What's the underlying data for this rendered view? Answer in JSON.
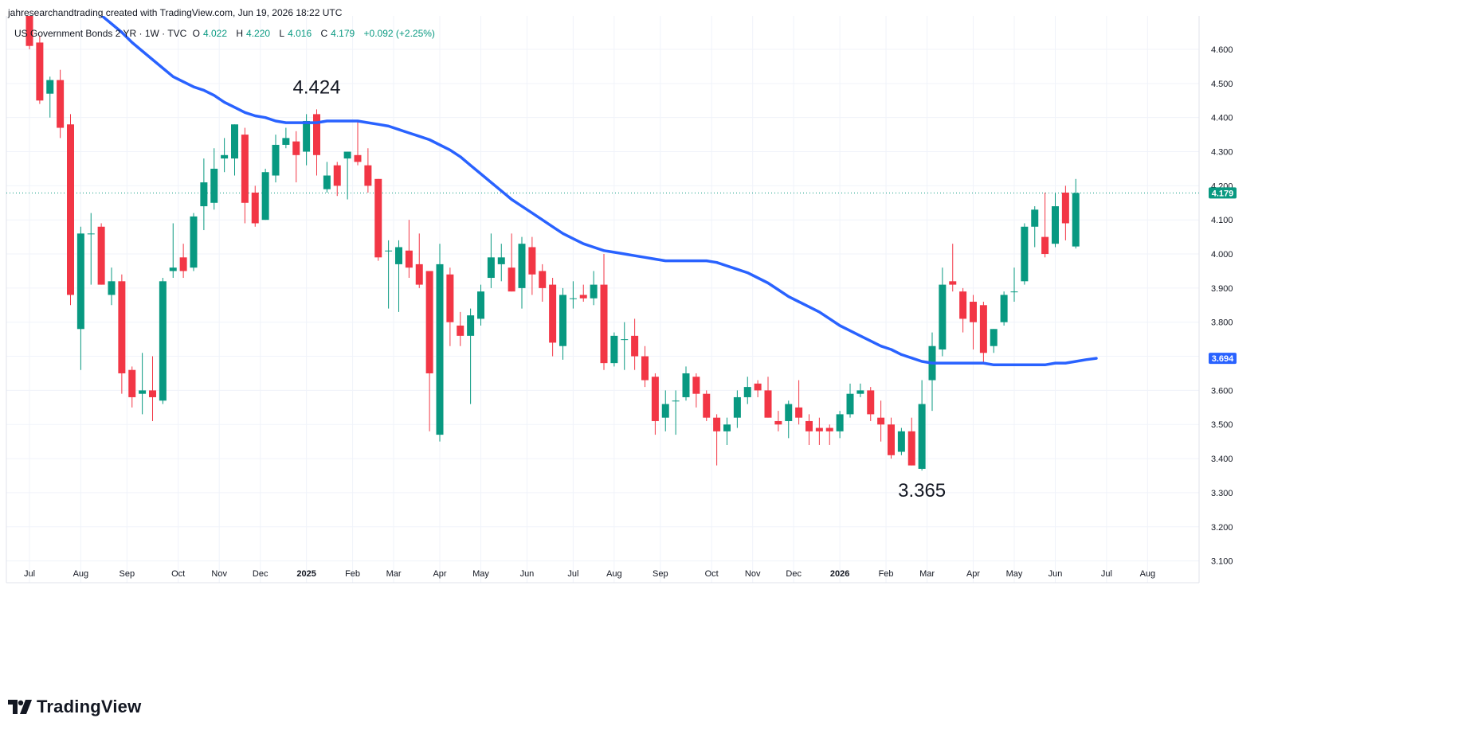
{
  "header": {
    "credit": "jahresearchandtrading created with TradingView.com, Jun 19, 2026 18:22 UTC",
    "symbol": "US Government Bonds 2 YR · 1W · TVC",
    "o_label": "O",
    "o_value": "4.022",
    "h_label": "H",
    "h_value": "4.220",
    "l_label": "L",
    "l_value": "4.016",
    "c_label": "C",
    "c_value": "4.179",
    "change": "+0.092 (+2.25%)"
  },
  "brand": {
    "name": "TradingView"
  },
  "colors": {
    "up": "#089981",
    "down": "#f23645",
    "ma": "#2962ff",
    "grid": "#f0f3fa"
  },
  "chart_data": {
    "type": "candlestick",
    "title": "US Government Bonds 2 YR · 1W · TVC",
    "ylim": [
      3.05,
      4.69
    ],
    "y_ticks": [
      "3.100",
      "3.200",
      "3.300",
      "3.400",
      "3.500",
      "3.600",
      "3.700",
      "3.800",
      "3.900",
      "4.000",
      "4.100",
      "4.200",
      "4.300",
      "4.400",
      "4.500",
      "4.600"
    ],
    "x_ticks": [
      {
        "label": "Jul",
        "i": 0
      },
      {
        "label": "Aug",
        "i": 5
      },
      {
        "label": "Sep",
        "i": 9.5
      },
      {
        "label": "Oct",
        "i": 14.5
      },
      {
        "label": "Nov",
        "i": 18.5
      },
      {
        "label": "Dec",
        "i": 22.5
      },
      {
        "label": "2025",
        "i": 27,
        "bold": true
      },
      {
        "label": "Feb",
        "i": 31.5
      },
      {
        "label": "Mar",
        "i": 35.5
      },
      {
        "label": "Apr",
        "i": 40
      },
      {
        "label": "May",
        "i": 44
      },
      {
        "label": "Jun",
        "i": 48.5
      },
      {
        "label": "Jul",
        "i": 53
      },
      {
        "label": "Aug",
        "i": 57
      },
      {
        "label": "Sep",
        "i": 61.5
      },
      {
        "label": "Oct",
        "i": 66.5
      },
      {
        "label": "Nov",
        "i": 70.5
      },
      {
        "label": "Dec",
        "i": 74.5
      },
      {
        "label": "2026",
        "i": 79,
        "bold": true
      },
      {
        "label": "Feb",
        "i": 83.5
      },
      {
        "label": "Mar",
        "i": 87.5
      },
      {
        "label": "Apr",
        "i": 92
      },
      {
        "label": "May",
        "i": 96
      },
      {
        "label": "Jun",
        "i": 100
      },
      {
        "label": "Jul",
        "i": 105
      },
      {
        "label": "Aug",
        "i": 109
      }
    ],
    "candles": [
      {
        "o": 4.72,
        "h": 4.75,
        "l": 4.6,
        "c": 4.61
      },
      {
        "o": 4.62,
        "h": 4.64,
        "l": 4.44,
        "c": 4.45
      },
      {
        "o": 4.47,
        "h": 4.52,
        "l": 4.4,
        "c": 4.51
      },
      {
        "o": 4.51,
        "h": 4.54,
        "l": 4.34,
        "c": 4.37
      },
      {
        "o": 4.38,
        "h": 4.41,
        "l": 3.85,
        "c": 3.88
      },
      {
        "o": 3.78,
        "h": 4.08,
        "l": 3.66,
        "c": 4.06
      },
      {
        "o": 4.06,
        "h": 4.12,
        "l": 3.91,
        "c": 4.06
      },
      {
        "o": 4.08,
        "h": 4.09,
        "l": 3.91,
        "c": 3.91
      },
      {
        "o": 3.88,
        "h": 3.96,
        "l": 3.85,
        "c": 3.92
      },
      {
        "o": 3.92,
        "h": 3.94,
        "l": 3.59,
        "c": 3.65
      },
      {
        "o": 3.66,
        "h": 3.67,
        "l": 3.55,
        "c": 3.58
      },
      {
        "o": 3.59,
        "h": 3.71,
        "l": 3.53,
        "c": 3.6
      },
      {
        "o": 3.6,
        "h": 3.7,
        "l": 3.51,
        "c": 3.58
      },
      {
        "o": 3.57,
        "h": 3.93,
        "l": 3.56,
        "c": 3.92
      },
      {
        "o": 3.95,
        "h": 4.09,
        "l": 3.93,
        "c": 3.96
      },
      {
        "o": 3.99,
        "h": 4.03,
        "l": 3.93,
        "c": 3.95
      },
      {
        "o": 3.96,
        "h": 4.12,
        "l": 3.95,
        "c": 4.11
      },
      {
        "o": 4.14,
        "h": 4.28,
        "l": 4.07,
        "c": 4.21
      },
      {
        "o": 4.15,
        "h": 4.31,
        "l": 4.13,
        "c": 4.25
      },
      {
        "o": 4.28,
        "h": 4.34,
        "l": 4.24,
        "c": 4.29
      },
      {
        "o": 4.28,
        "h": 4.38,
        "l": 4.23,
        "c": 4.38
      },
      {
        "o": 4.35,
        "h": 4.37,
        "l": 4.09,
        "c": 4.15
      },
      {
        "o": 4.18,
        "h": 4.2,
        "l": 4.08,
        "c": 4.09
      },
      {
        "o": 4.1,
        "h": 4.25,
        "l": 4.1,
        "c": 4.24
      },
      {
        "o": 4.23,
        "h": 4.35,
        "l": 4.21,
        "c": 4.32
      },
      {
        "o": 4.32,
        "h": 4.37,
        "l": 4.31,
        "c": 4.34
      },
      {
        "o": 4.33,
        "h": 4.36,
        "l": 4.21,
        "c": 4.29
      },
      {
        "o": 4.3,
        "h": 4.41,
        "l": 4.26,
        "c": 4.39
      },
      {
        "o": 4.41,
        "h": 4.424,
        "l": 4.23,
        "c": 4.29
      },
      {
        "o": 4.19,
        "h": 4.27,
        "l": 4.18,
        "c": 4.23
      },
      {
        "o": 4.26,
        "h": 4.27,
        "l": 4.17,
        "c": 4.2
      },
      {
        "o": 4.28,
        "h": 4.3,
        "l": 4.16,
        "c": 4.3
      },
      {
        "o": 4.29,
        "h": 4.39,
        "l": 4.26,
        "c": 4.27
      },
      {
        "o": 4.26,
        "h": 4.31,
        "l": 4.18,
        "c": 4.2
      },
      {
        "o": 4.22,
        "h": 4.22,
        "l": 3.98,
        "c": 3.99
      },
      {
        "o": 4.01,
        "h": 4.04,
        "l": 3.84,
        "c": 4.01
      },
      {
        "o": 3.97,
        "h": 4.04,
        "l": 3.83,
        "c": 4.02
      },
      {
        "o": 4.01,
        "h": 4.1,
        "l": 3.93,
        "c": 3.96
      },
      {
        "o": 3.97,
        "h": 4.06,
        "l": 3.9,
        "c": 3.91
      },
      {
        "o": 3.95,
        "h": 3.95,
        "l": 3.48,
        "c": 3.65
      },
      {
        "o": 3.47,
        "h": 4.03,
        "l": 3.45,
        "c": 3.97
      },
      {
        "o": 3.94,
        "h": 3.96,
        "l": 3.73,
        "c": 3.8
      },
      {
        "o": 3.79,
        "h": 3.83,
        "l": 3.73,
        "c": 3.76
      },
      {
        "o": 3.76,
        "h": 3.84,
        "l": 3.56,
        "c": 3.82
      },
      {
        "o": 3.81,
        "h": 3.91,
        "l": 3.79,
        "c": 3.89
      },
      {
        "o": 3.93,
        "h": 4.06,
        "l": 3.9,
        "c": 3.99
      },
      {
        "o": 3.97,
        "h": 4.03,
        "l": 3.92,
        "c": 3.99
      },
      {
        "o": 3.96,
        "h": 4.06,
        "l": 3.89,
        "c": 3.89
      },
      {
        "o": 3.9,
        "h": 4.05,
        "l": 3.84,
        "c": 4.03
      },
      {
        "o": 4.02,
        "h": 4.05,
        "l": 3.88,
        "c": 3.94
      },
      {
        "o": 3.95,
        "h": 3.97,
        "l": 3.86,
        "c": 3.9
      },
      {
        "o": 3.91,
        "h": 3.93,
        "l": 3.7,
        "c": 3.74
      },
      {
        "o": 3.73,
        "h": 3.9,
        "l": 3.69,
        "c": 3.88
      },
      {
        "o": 3.87,
        "h": 3.92,
        "l": 3.84,
        "c": 3.87
      },
      {
        "o": 3.88,
        "h": 3.91,
        "l": 3.86,
        "c": 3.87
      },
      {
        "o": 3.87,
        "h": 3.95,
        "l": 3.85,
        "c": 3.91
      },
      {
        "o": 3.91,
        "h": 4.0,
        "l": 3.66,
        "c": 3.68
      },
      {
        "o": 3.68,
        "h": 3.77,
        "l": 3.67,
        "c": 3.76
      },
      {
        "o": 3.75,
        "h": 3.8,
        "l": 3.66,
        "c": 3.75
      },
      {
        "o": 3.76,
        "h": 3.81,
        "l": 3.66,
        "c": 3.7
      },
      {
        "o": 3.7,
        "h": 3.73,
        "l": 3.61,
        "c": 3.63
      },
      {
        "o": 3.64,
        "h": 3.65,
        "l": 3.47,
        "c": 3.51
      },
      {
        "o": 3.52,
        "h": 3.6,
        "l": 3.48,
        "c": 3.56
      },
      {
        "o": 3.57,
        "h": 3.6,
        "l": 3.47,
        "c": 3.57
      },
      {
        "o": 3.58,
        "h": 3.67,
        "l": 3.57,
        "c": 3.65
      },
      {
        "o": 3.64,
        "h": 3.65,
        "l": 3.55,
        "c": 3.59
      },
      {
        "o": 3.59,
        "h": 3.6,
        "l": 3.51,
        "c": 3.52
      },
      {
        "o": 3.52,
        "h": 3.53,
        "l": 3.38,
        "c": 3.48
      },
      {
        "o": 3.48,
        "h": 3.52,
        "l": 3.44,
        "c": 3.5
      },
      {
        "o": 3.52,
        "h": 3.6,
        "l": 3.49,
        "c": 3.58
      },
      {
        "o": 3.58,
        "h": 3.64,
        "l": 3.56,
        "c": 3.61
      },
      {
        "o": 3.62,
        "h": 3.63,
        "l": 3.58,
        "c": 3.6
      },
      {
        "o": 3.6,
        "h": 3.64,
        "l": 3.52,
        "c": 3.52
      },
      {
        "o": 3.51,
        "h": 3.54,
        "l": 3.48,
        "c": 3.5
      },
      {
        "o": 3.51,
        "h": 3.57,
        "l": 3.46,
        "c": 3.56
      },
      {
        "o": 3.55,
        "h": 3.63,
        "l": 3.5,
        "c": 3.52
      },
      {
        "o": 3.51,
        "h": 3.53,
        "l": 3.44,
        "c": 3.48
      },
      {
        "o": 3.49,
        "h": 3.52,
        "l": 3.44,
        "c": 3.48
      },
      {
        "o": 3.49,
        "h": 3.5,
        "l": 3.44,
        "c": 3.48
      },
      {
        "o": 3.48,
        "h": 3.54,
        "l": 3.46,
        "c": 3.53
      },
      {
        "o": 3.53,
        "h": 3.62,
        "l": 3.52,
        "c": 3.59
      },
      {
        "o": 3.59,
        "h": 3.62,
        "l": 3.58,
        "c": 3.6
      },
      {
        "o": 3.6,
        "h": 3.61,
        "l": 3.51,
        "c": 3.53
      },
      {
        "o": 3.52,
        "h": 3.57,
        "l": 3.45,
        "c": 3.5
      },
      {
        "o": 3.5,
        "h": 3.52,
        "l": 3.4,
        "c": 3.41
      },
      {
        "o": 3.42,
        "h": 3.49,
        "l": 3.41,
        "c": 3.48
      },
      {
        "o": 3.48,
        "h": 3.52,
        "l": 3.38,
        "c": 3.38
      },
      {
        "o": 3.37,
        "h": 3.63,
        "l": 3.365,
        "c": 3.56
      },
      {
        "o": 3.63,
        "h": 3.77,
        "l": 3.54,
        "c": 3.73
      },
      {
        "o": 3.72,
        "h": 3.96,
        "l": 3.7,
        "c": 3.91
      },
      {
        "o": 3.92,
        "h": 4.03,
        "l": 3.89,
        "c": 3.91
      },
      {
        "o": 3.89,
        "h": 3.9,
        "l": 3.77,
        "c": 3.81
      },
      {
        "o": 3.86,
        "h": 3.88,
        "l": 3.72,
        "c": 3.8
      },
      {
        "o": 3.85,
        "h": 3.86,
        "l": 3.68,
        "c": 3.71
      },
      {
        "o": 3.73,
        "h": 3.78,
        "l": 3.71,
        "c": 3.78
      },
      {
        "o": 3.8,
        "h": 3.89,
        "l": 3.79,
        "c": 3.88
      },
      {
        "o": 3.89,
        "h": 3.96,
        "l": 3.86,
        "c": 3.89
      },
      {
        "o": 3.92,
        "h": 4.09,
        "l": 3.91,
        "c": 4.08
      },
      {
        "o": 4.08,
        "h": 4.14,
        "l": 4.02,
        "c": 4.13
      },
      {
        "o": 4.05,
        "h": 4.18,
        "l": 3.99,
        "c": 4.0
      },
      {
        "o": 4.03,
        "h": 4.18,
        "l": 4.02,
        "c": 4.14
      },
      {
        "o": 4.18,
        "h": 4.2,
        "l": 4.04,
        "c": 4.09
      },
      {
        "o": 4.022,
        "h": 4.22,
        "l": 4.016,
        "c": 4.179
      }
    ],
    "ma": [
      4.79,
      4.775,
      4.755,
      4.73,
      4.7,
      4.675,
      4.65,
      4.62,
      4.595,
      4.57,
      4.545,
      4.52,
      4.505,
      4.49,
      4.48,
      4.465,
      4.445,
      4.43,
      4.415,
      4.405,
      4.4,
      4.39,
      4.385,
      4.385,
      4.385,
      4.385,
      4.39,
      4.39,
      4.39,
      4.39,
      4.385,
      4.38,
      4.375,
      4.365,
      4.355,
      4.345,
      4.335,
      4.32,
      4.305,
      4.285,
      4.26,
      4.235,
      4.21,
      4.185,
      4.16,
      4.14,
      4.12,
      4.1,
      4.08,
      4.06,
      4.045,
      4.03,
      4.02,
      4.01,
      4.005,
      4.0,
      3.995,
      3.99,
      3.985,
      3.98,
      3.98,
      3.98,
      3.98,
      3.98,
      3.975,
      3.965,
      3.955,
      3.945,
      3.93,
      3.915,
      3.895,
      3.875,
      3.86,
      3.845,
      3.83,
      3.81,
      3.79,
      3.775,
      3.76,
      3.745,
      3.73,
      3.72,
      3.705,
      3.695,
      3.685,
      3.68,
      3.68,
      3.68,
      3.68,
      3.68,
      3.68,
      3.675,
      3.675,
      3.675,
      3.675,
      3.675,
      3.675,
      3.68,
      3.68,
      3.685,
      3.69,
      3.694
    ],
    "ma_start": 3,
    "annotations": [
      {
        "text": "4.424",
        "i": 28,
        "value": 4.424,
        "pos": "above"
      },
      {
        "text": "3.365",
        "i": 87,
        "value": 3.365,
        "pos": "below"
      }
    ],
    "last_price": {
      "value": 4.179,
      "label": "4.179"
    },
    "ma_last": {
      "value": 3.694,
      "label": "3.694"
    },
    "grid": true
  }
}
